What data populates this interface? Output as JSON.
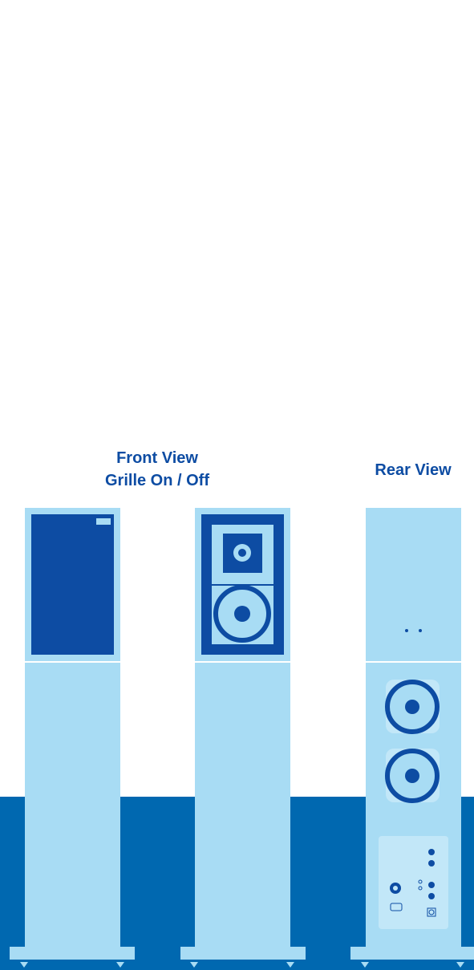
{
  "front_view": {
    "title": "Front View",
    "subtitle": "Grille On / Off"
  },
  "rear_view": {
    "title": "Rear View"
  }
}
